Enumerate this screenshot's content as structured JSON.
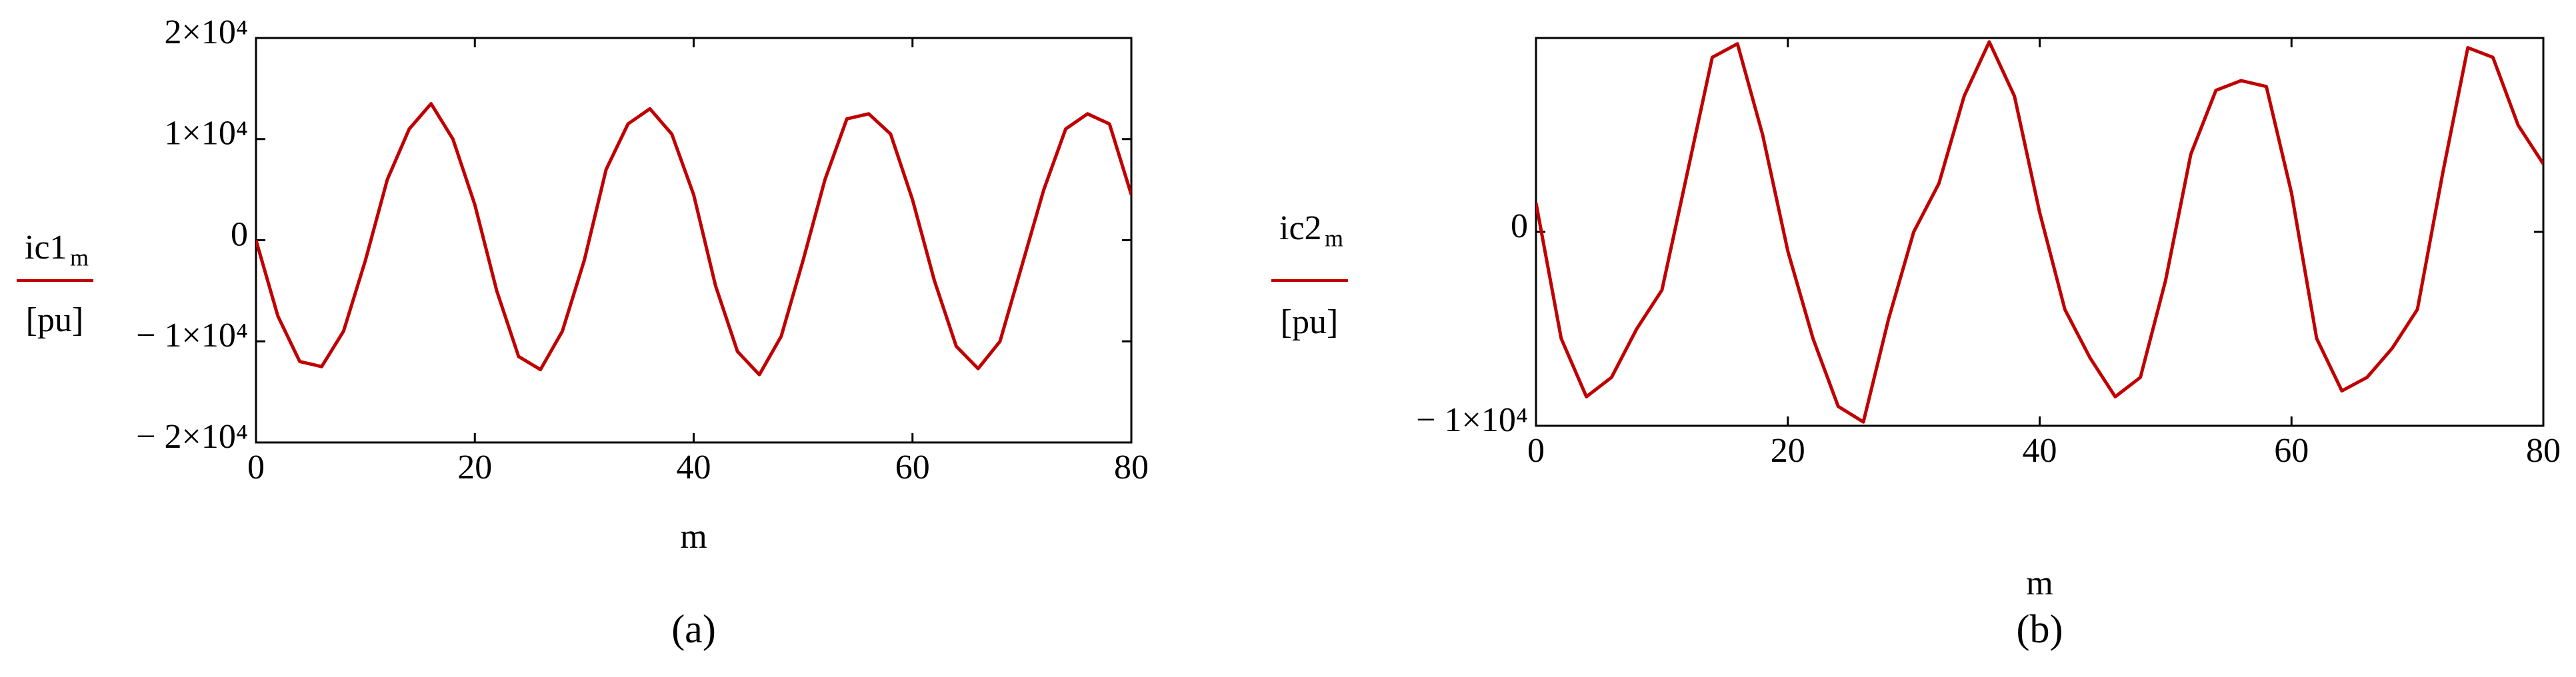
{
  "chart_data": [
    {
      "type": "line",
      "panel_label": "(a)",
      "xlabel": "m",
      "ylabel": "ic1",
      "ylabel_sub": "m",
      "yunit": "[pu]",
      "color": "#c00000",
      "xlim": [
        0,
        80
      ],
      "xticks": [
        0,
        20,
        40,
        60,
        80
      ],
      "ylim": [
        -20000,
        20000
      ],
      "yticks": [
        {
          "value": -20000,
          "label": "− 2×10⁴"
        },
        {
          "value": -10000,
          "label": "− 1×10⁴"
        },
        0,
        {
          "value": 10000,
          "label": "1×10⁴"
        },
        {
          "value": 20000,
          "label": "2×10⁴"
        }
      ],
      "x": [
        0,
        2,
        4,
        6,
        8,
        10,
        12,
        14,
        16,
        18,
        20,
        22,
        24,
        26,
        28,
        30,
        32,
        34,
        36,
        38,
        40,
        42,
        44,
        46,
        48,
        50,
        52,
        54,
        56,
        58,
        60,
        62,
        64,
        66,
        68,
        70,
        72,
        74,
        76,
        78,
        80
      ],
      "values": [
        0,
        -7500,
        -12000,
        -12500,
        -9000,
        -2000,
        6000,
        11000,
        13500,
        10000,
        3500,
        -5000,
        -11500,
        -12800,
        -9000,
        -2000,
        7000,
        11500,
        13000,
        10500,
        4500,
        -4500,
        -11000,
        -13300,
        -9500,
        -2000,
        6000,
        12000,
        12500,
        10500,
        4000,
        -4000,
        -10500,
        -12700,
        -10000,
        -2500,
        5000,
        11000,
        12500,
        11500,
        4500
      ]
    },
    {
      "type": "line",
      "panel_label": "(b)",
      "xlabel": "m",
      "ylabel": "ic2",
      "ylabel_sub": "m",
      "yunit": "[pu]",
      "color": "#c00000",
      "xlim": [
        0,
        80
      ],
      "xticks": [
        0,
        20,
        40,
        60,
        80
      ],
      "ylim": [
        -10000,
        10000
      ],
      "yticks": [
        {
          "value": -10000,
          "label": "− 1×10⁴"
        },
        0
      ],
      "x": [
        0,
        2,
        4,
        6,
        8,
        10,
        12,
        14,
        16,
        18,
        20,
        22,
        24,
        26,
        28,
        30,
        32,
        34,
        36,
        38,
        40,
        42,
        44,
        46,
        48,
        50,
        52,
        54,
        56,
        58,
        60,
        62,
        64,
        66,
        68,
        70,
        72,
        74,
        76,
        78,
        80
      ],
      "values": [
        1500,
        -5500,
        -8500,
        -7500,
        -5000,
        -3000,
        3000,
        9000,
        9700,
        5000,
        -1000,
        -5500,
        -9000,
        -9800,
        -4500,
        0,
        2500,
        7000,
        9800,
        7000,
        1000,
        -4000,
        -6500,
        -8500,
        -7500,
        -2500,
        4000,
        7300,
        7800,
        7500,
        2000,
        -5500,
        -8200,
        -7500,
        -6000,
        -4000,
        3000,
        9500,
        9000,
        5500,
        3500
      ]
    }
  ]
}
